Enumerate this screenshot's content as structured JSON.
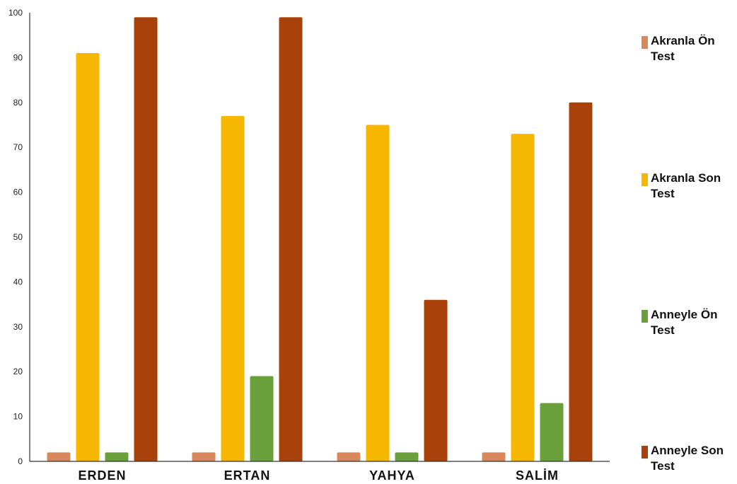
{
  "chart_data": {
    "type": "bar",
    "title": "",
    "xlabel": "",
    "ylabel": "",
    "ylim": [
      0,
      100
    ],
    "yticks": [
      0,
      10,
      20,
      30,
      40,
      50,
      60,
      70,
      80,
      90,
      100
    ],
    "grid": false,
    "legend_position": "right",
    "categories": [
      "ERDEN",
      "ERTAN",
      "YAHYA",
      "SALİM"
    ],
    "series": [
      {
        "name": "Akranla Ön Test",
        "color": "#d8885a",
        "values": [
          2,
          2,
          2,
          2
        ]
      },
      {
        "name": "Akranla Son Test",
        "color": "#f5b700",
        "values": [
          91,
          77,
          75,
          73
        ]
      },
      {
        "name": "Anneyle Ön Test",
        "color": "#6aa03c",
        "values": [
          2,
          19,
          2,
          13
        ]
      },
      {
        "name": "Anneyle Son Test",
        "color": "#a8420a",
        "values": [
          99,
          99,
          36,
          80
        ]
      }
    ]
  }
}
